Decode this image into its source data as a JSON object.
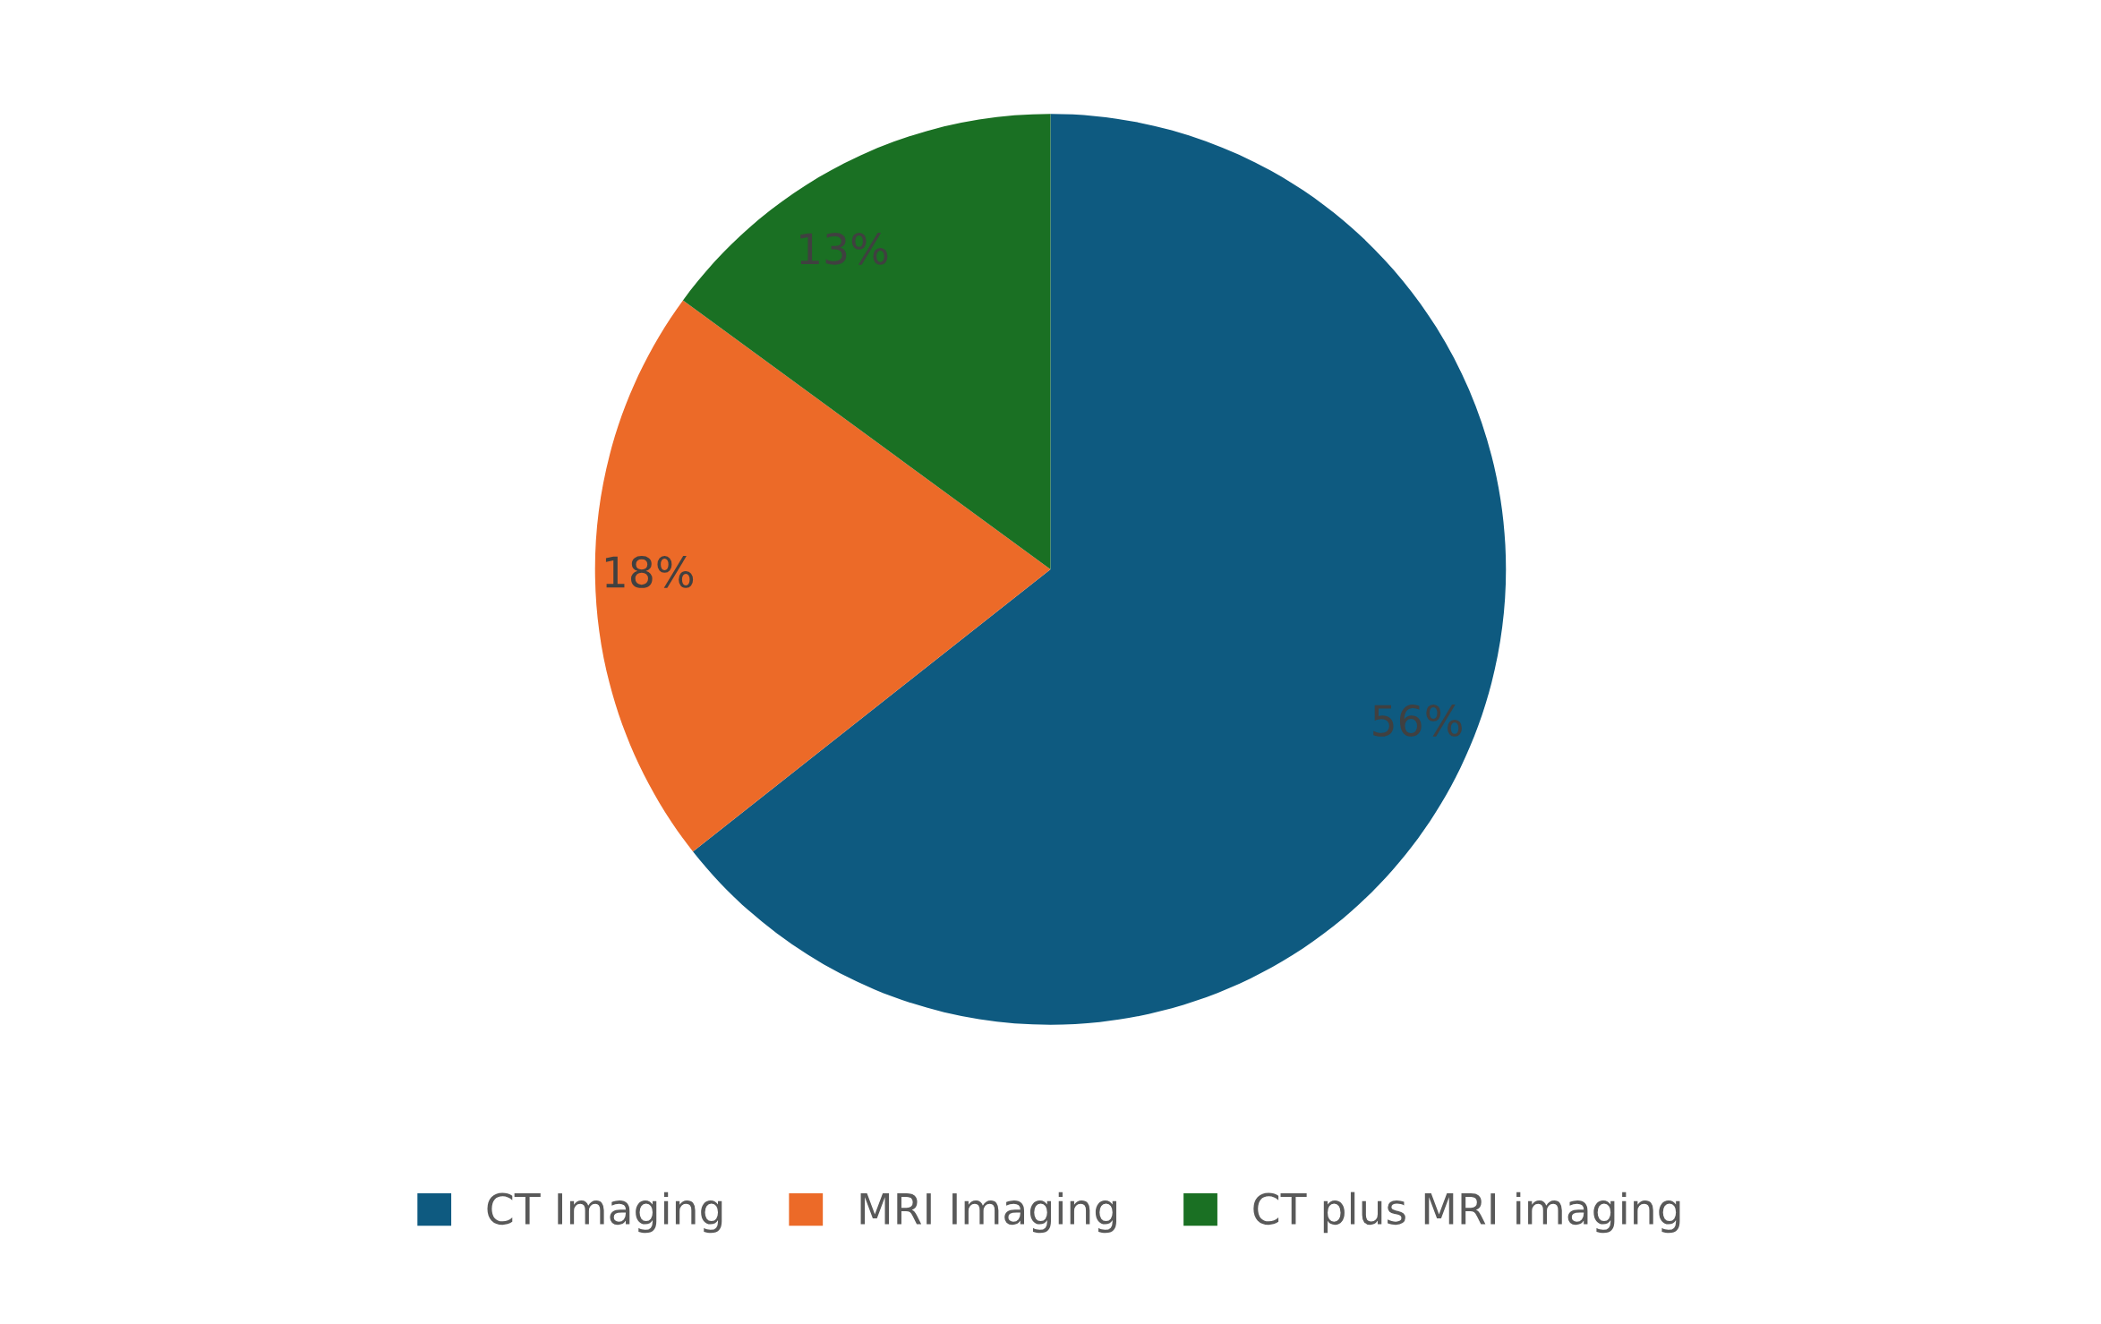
{
  "chart_data": {
    "type": "pie",
    "categories": [
      "CT Imaging",
      "MRI Imaging",
      "CT plus MRI imaging"
    ],
    "values": [
      56,
      18,
      13
    ],
    "value_labels": [
      "56%",
      "18%",
      "13%"
    ],
    "colors": [
      "#0e5a80",
      "#ec6a28",
      "#1a7023"
    ],
    "legend": "bottom"
  }
}
